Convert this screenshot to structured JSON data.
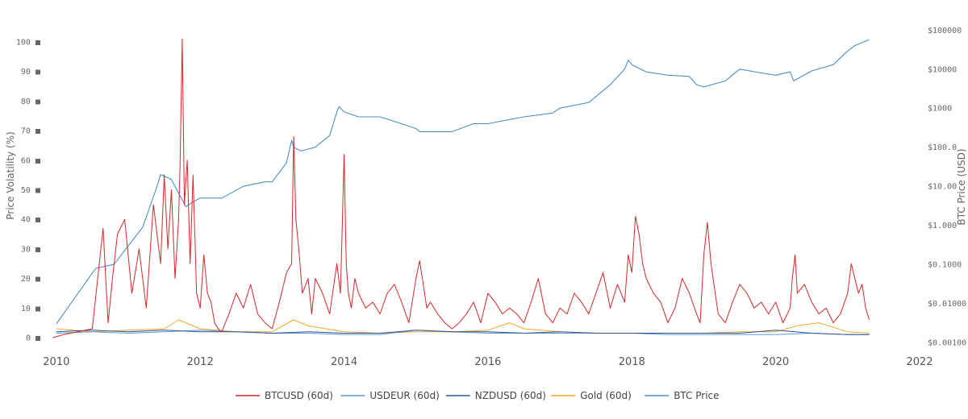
{
  "chart_data": {
    "type": "line",
    "title": "",
    "xlabel": "",
    "ylabel": "Price Volatility (%)",
    "y2label": "BTC Price (USD)",
    "xlim": [
      2009.8,
      2022
    ],
    "ylim": [
      -3,
      106
    ],
    "y2_log_range": [
      -3.1,
      5.15
    ],
    "y2_scale": "log",
    "grid": false,
    "legend_position": "bottom-center",
    "x_ticks": [
      {
        "value": 2010,
        "label": "2010"
      },
      {
        "value": 2012,
        "label": "2012"
      },
      {
        "value": 2014,
        "label": "2014"
      },
      {
        "value": 2016,
        "label": "2016"
      },
      {
        "value": 2018,
        "label": "2018"
      },
      {
        "value": 2020,
        "label": "2020"
      },
      {
        "value": 2022,
        "label": "2022"
      }
    ],
    "y_ticks": [
      {
        "value": 0,
        "label": "0 ■"
      },
      {
        "value": 10,
        "label": "10 ■"
      },
      {
        "value": 20,
        "label": "20 ■"
      },
      {
        "value": 30,
        "label": "30 ■"
      },
      {
        "value": 40,
        "label": "40 ■"
      },
      {
        "value": 50,
        "label": "50 ■"
      },
      {
        "value": 60,
        "label": "60 ■"
      },
      {
        "value": 70,
        "label": "70 ■"
      },
      {
        "value": 80,
        "label": "80 ■"
      },
      {
        "value": 90,
        "label": "90 ■"
      },
      {
        "value": 100,
        "label": "100 ■"
      }
    ],
    "y2_ticks": [
      {
        "value": 100000,
        "label": "$100000"
      },
      {
        "value": 10000,
        "label": "$10000"
      },
      {
        "value": 1000,
        "label": "$1000"
      },
      {
        "value": 100,
        "label": "$100.0"
      },
      {
        "value": 10,
        "label": "$10.00"
      },
      {
        "value": 1,
        "label": "$1.000"
      },
      {
        "value": 0.1,
        "label": "$0.1000"
      },
      {
        "value": 0.01,
        "label": "$0.01000"
      },
      {
        "value": 0.001,
        "label": "$0.00100"
      }
    ],
    "series": [
      {
        "name": "BTCUSD (60d)",
        "color": "#d62728",
        "axis": "left",
        "x": [
          2009.95,
          2010.1,
          2010.3,
          2010.5,
          2010.65,
          2010.72,
          2010.78,
          2010.85,
          2010.95,
          2011.05,
          2011.15,
          2011.25,
          2011.35,
          2011.45,
          2011.5,
          2011.55,
          2011.6,
          2011.65,
          2011.7,
          2011.72,
          2011.75,
          2011.78,
          2011.82,
          2011.86,
          2011.9,
          2011.95,
          2012.0,
          2012.05,
          2012.1,
          2012.15,
          2012.2,
          2012.25,
          2012.3,
          2012.35,
          2012.4,
          2012.5,
          2012.6,
          2012.7,
          2012.8,
          2012.9,
          2013.0,
          2013.1,
          2013.2,
          2013.27,
          2013.3,
          2013.33,
          2013.37,
          2013.42,
          2013.5,
          2013.55,
          2013.6,
          2013.7,
          2013.8,
          2013.9,
          2013.95,
          2014.0,
          2014.03,
          2014.06,
          2014.1,
          2014.15,
          2014.2,
          2014.3,
          2014.4,
          2014.5,
          2014.6,
          2014.7,
          2014.8,
          2014.9,
          2015.0,
          2015.05,
          2015.1,
          2015.15,
          2015.2,
          2015.3,
          2015.4,
          2015.5,
          2015.6,
          2015.7,
          2015.8,
          2015.9,
          2016.0,
          2016.1,
          2016.2,
          2016.3,
          2016.4,
          2016.5,
          2016.6,
          2016.7,
          2016.8,
          2016.9,
          2017.0,
          2017.1,
          2017.2,
          2017.3,
          2017.4,
          2017.5,
          2017.6,
          2017.7,
          2017.8,
          2017.9,
          2017.95,
          2018.0,
          2018.05,
          2018.1,
          2018.15,
          2018.2,
          2018.3,
          2018.4,
          2018.5,
          2018.6,
          2018.7,
          2018.8,
          2018.9,
          2018.95,
          2019.0,
          2019.05,
          2019.1,
          2019.2,
          2019.3,
          2019.4,
          2019.5,
          2019.6,
          2019.7,
          2019.8,
          2019.9,
          2020.0,
          2020.1,
          2020.2,
          2020.23,
          2020.27,
          2020.3,
          2020.4,
          2020.5,
          2020.6,
          2020.7,
          2020.8,
          2020.9,
          2021.0,
          2021.05,
          2021.1,
          2021.15,
          2021.2,
          2021.25,
          2021.3
        ],
        "values": [
          0,
          1,
          2,
          3,
          37,
          5,
          20,
          35,
          40,
          15,
          30,
          10,
          45,
          25,
          55,
          30,
          50,
          20,
          40,
          58,
          101,
          45,
          60,
          25,
          55,
          15,
          10,
          28,
          15,
          12,
          5,
          3,
          2,
          5,
          8,
          15,
          10,
          18,
          8,
          5,
          3,
          12,
          22,
          25,
          68,
          40,
          30,
          15,
          20,
          8,
          20,
          15,
          8,
          25,
          15,
          62,
          25,
          15,
          10,
          20,
          15,
          10,
          12,
          8,
          15,
          18,
          12,
          5,
          20,
          26,
          18,
          10,
          12,
          8,
          5,
          3,
          5,
          8,
          12,
          5,
          15,
          12,
          8,
          10,
          8,
          5,
          12,
          20,
          8,
          5,
          10,
          8,
          15,
          12,
          8,
          15,
          22,
          10,
          18,
          12,
          28,
          22,
          41,
          35,
          25,
          20,
          15,
          12,
          5,
          10,
          20,
          15,
          8,
          5,
          28,
          39,
          25,
          8,
          5,
          12,
          18,
          15,
          10,
          12,
          8,
          12,
          5,
          10,
          20,
          28,
          15,
          18,
          12,
          8,
          10,
          5,
          8,
          15,
          25,
          20,
          15,
          18,
          10,
          6
        ]
      },
      {
        "name": "USDEUR (60d)",
        "color": "#5b9bd5",
        "axis": "left",
        "x": [
          2010,
          2010.5,
          2011,
          2011.5,
          2012,
          2012.5,
          2013,
          2013.5,
          2014,
          2014.5,
          2015,
          2015.5,
          2016,
          2016.5,
          2017,
          2017.5,
          2018,
          2018.5,
          2019,
          2019.5,
          2020,
          2020.5,
          2021,
          2021.3
        ],
        "values": [
          1.5,
          2,
          1.5,
          2,
          2.5,
          2,
          1.5,
          1.5,
          1,
          1,
          2.5,
          2,
          1.5,
          1.5,
          1.5,
          1.5,
          1.5,
          1,
          1,
          1,
          1,
          1.5,
          1,
          1
        ]
      },
      {
        "name": "NZDUSD (60d)",
        "color": "#2f5597",
        "axis": "left",
        "x": [
          2010,
          2010.5,
          2011,
          2011.5,
          2012,
          2012.5,
          2013,
          2013.5,
          2014,
          2014.5,
          2015,
          2015.5,
          2016,
          2016.5,
          2017,
          2017.5,
          2018,
          2018.5,
          2019,
          2019.5,
          2020,
          2020.5,
          2021,
          2021.3
        ],
        "values": [
          2,
          2.5,
          2,
          2.5,
          2,
          2,
          1.5,
          2,
          1.5,
          1.5,
          2.5,
          2,
          2,
          1.5,
          2,
          1.5,
          1.5,
          1.5,
          1.5,
          1.5,
          2.5,
          1.5,
          1,
          1
        ]
      },
      {
        "name": "Gold (60d)",
        "color": "#f5a623",
        "axis": "left",
        "x": [
          2010,
          2010.5,
          2011,
          2011.5,
          2011.7,
          2012,
          2012.5,
          2013,
          2013.3,
          2013.5,
          2014,
          2014.5,
          2015,
          2015.5,
          2016,
          2016.3,
          2016.5,
          2017,
          2017.5,
          2018,
          2018.5,
          2019,
          2019.5,
          2020,
          2020.3,
          2020.6,
          2021,
          2021.3
        ],
        "values": [
          3,
          2,
          2.5,
          3,
          6,
          3,
          2,
          2,
          6,
          4,
          2,
          1.5,
          2,
          2,
          2.5,
          5,
          3,
          2,
          1.5,
          1.5,
          1.5,
          1.5,
          2,
          2,
          4,
          5,
          2,
          1.5
        ]
      },
      {
        "name": "BTC Price",
        "color": "#4a90c8",
        "axis": "right",
        "x": [
          2010.0,
          2010.5,
          2010.55,
          2010.8,
          2011.0,
          2011.2,
          2011.4,
          2011.45,
          2011.6,
          2011.8,
          2011.9,
          2012.0,
          2012.3,
          2012.6,
          2012.9,
          2013.0,
          2013.2,
          2013.27,
          2013.3,
          2013.4,
          2013.6,
          2013.8,
          2013.9,
          2013.93,
          2014.0,
          2014.2,
          2014.5,
          2014.8,
          2015.0,
          2015.05,
          2015.5,
          2015.8,
          2016.0,
          2016.5,
          2016.9,
          2017.0,
          2017.4,
          2017.7,
          2017.9,
          2017.95,
          2018.0,
          2018.2,
          2018.5,
          2018.8,
          2018.9,
          2019.0,
          2019.3,
          2019.5,
          2019.8,
          2020.0,
          2020.2,
          2020.25,
          2020.5,
          2020.8,
          2021.0,
          2021.1,
          2021.3
        ],
        "values": [
          0.003,
          0.06,
          0.08,
          0.1,
          0.3,
          0.9,
          10,
          20,
          15,
          3,
          4,
          5,
          5,
          10,
          13,
          13,
          40,
          150,
          100,
          80,
          100,
          200,
          800,
          1100,
          800,
          600,
          600,
          400,
          300,
          250,
          250,
          400,
          400,
          600,
          750,
          1000,
          1400,
          4000,
          10000,
          17000,
          13000,
          8500,
          7000,
          6500,
          4000,
          3500,
          5000,
          10000,
          8000,
          7000,
          8500,
          5000,
          9000,
          13000,
          29000,
          40000,
          57000
        ]
      }
    ]
  }
}
